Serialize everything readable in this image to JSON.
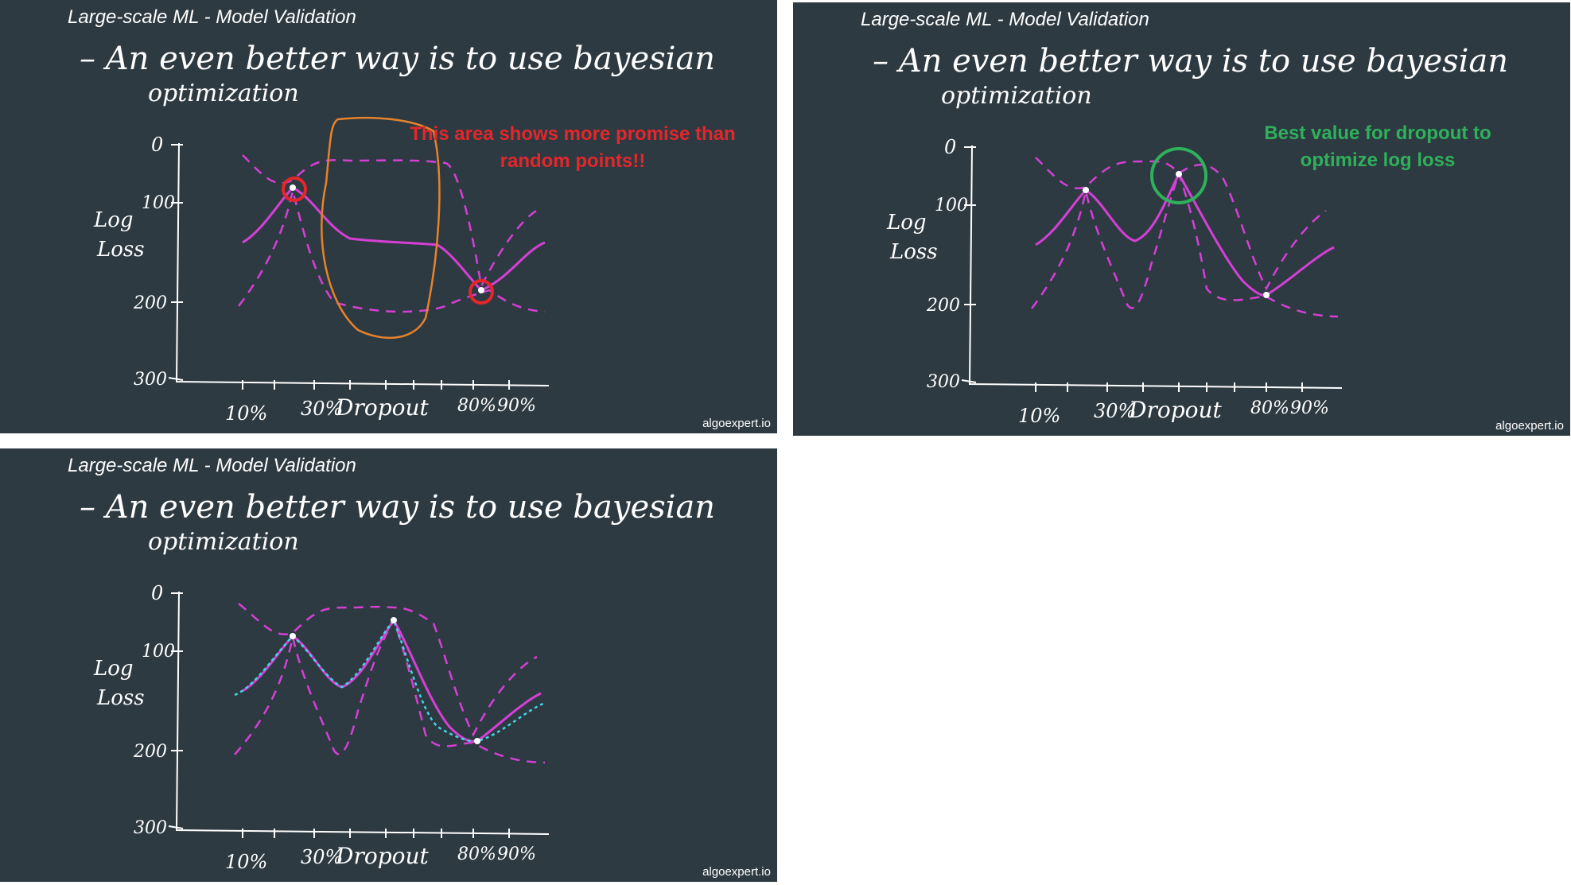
{
  "slide_title": "Large-scale ML - Model Validation",
  "heading_line1": "– An even better way is to use bayesian",
  "heading_line2": "optimization",
  "watermark": "algoexpert.io",
  "axis": {
    "y_label_line1": "Log",
    "y_label_line2": "Loss",
    "y_ticks": [
      "0",
      "100",
      "200",
      "300"
    ],
    "x_ticks": [
      "10%",
      "30%",
      "80%",
      "90%"
    ],
    "x_label": "Dropout"
  },
  "annotations": {
    "promise": "This area shows more promise than random points!!",
    "best": "Best value for dropout to optimize log loss"
  },
  "colors": {
    "background": "#2d3a42",
    "mean_curve": "#d63fd6",
    "confidence_band": "#d63fd6",
    "highlight_circle": "#e5262a",
    "region": "#e8822a",
    "best_circle": "#2fb15b",
    "true_function": "#3fd6e6"
  }
}
